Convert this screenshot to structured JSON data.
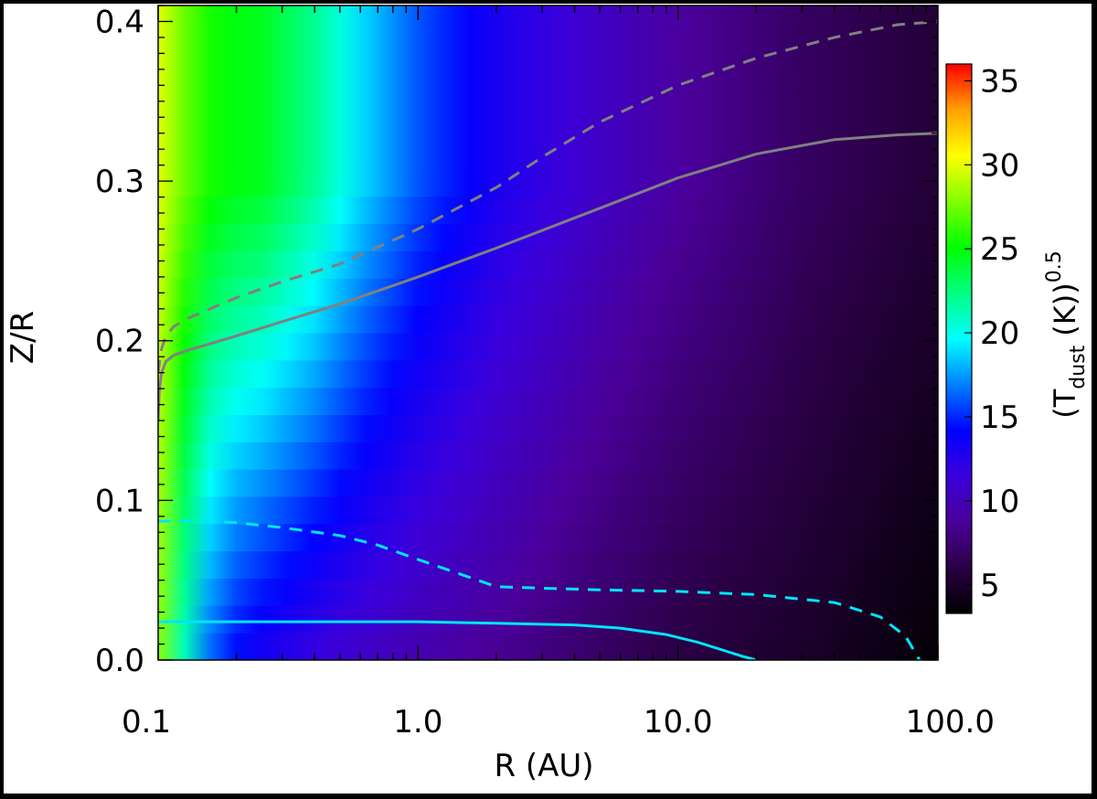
{
  "chart_data": {
    "type": "heatmap",
    "xlabel": "R  (AU)",
    "ylabel": "Z/R",
    "x_scale": "log",
    "xlim": [
      0.1,
      100.0
    ],
    "ylim": [
      0.0,
      0.41
    ],
    "x_ticks": [
      0.1,
      1.0,
      10.0,
      100.0
    ],
    "x_tick_labels": [
      "0.1",
      "1.0",
      "10.0",
      "100.0"
    ],
    "y_ticks": [
      0.0,
      0.1,
      0.2,
      0.3,
      0.4
    ],
    "y_tick_labels": [
      "0.0",
      "0.1",
      "0.2",
      "0.3",
      "0.4"
    ],
    "colorbar": {
      "label_main": "(T",
      "label_sub": "dust",
      "label_unit": "(K))",
      "label_exp": "0.5",
      "range": [
        3.3,
        36.0
      ],
      "ticks": [
        5,
        10,
        15,
        20,
        25,
        30,
        35
      ],
      "tick_labels": [
        "5",
        "10",
        "15",
        "20",
        "25",
        "30",
        "35"
      ],
      "colormap": [
        "#000000",
        "#2a0044",
        "#4a0099",
        "#3a00dd",
        "#0000ff",
        "#0080ff",
        "#00ffff",
        "#00ff80",
        "#00ff00",
        "#80ff00",
        "#ffff00",
        "#ffa000",
        "#ff0000"
      ]
    },
    "heatmap_profile": {
      "x_au": [
        0.1,
        0.13,
        0.17,
        0.25,
        0.4,
        0.6,
        1.0,
        2.0,
        5.0,
        10.0,
        30.0,
        100.0
      ],
      "value_midplane": [
        28,
        20,
        15,
        13,
        11.5,
        10.5,
        9.5,
        8.5,
        7,
        6,
        5,
        3.5
      ],
      "value_surface": [
        30,
        27,
        25,
        24.5,
        22,
        19,
        16,
        13,
        10.5,
        9,
        7,
        5.5
      ]
    },
    "series": [
      {
        "style": "dashed",
        "color": "#808080",
        "x": [
          0.1,
          0.103,
          0.107,
          0.115,
          0.13,
          0.2,
          0.3,
          0.5,
          1.0,
          2.0,
          3.0,
          5.0,
          10.0,
          20.0,
          40.0,
          70.0,
          100.0
        ],
        "y": [
          0.18,
          0.195,
          0.203,
          0.209,
          0.214,
          0.227,
          0.237,
          0.248,
          0.27,
          0.296,
          0.315,
          0.337,
          0.36,
          0.377,
          0.39,
          0.398,
          0.4
        ]
      },
      {
        "style": "solid",
        "color": "#808080",
        "x": [
          0.1,
          0.101,
          0.103,
          0.107,
          0.115,
          0.13,
          0.2,
          0.3,
          0.5,
          1.0,
          2.0,
          5.0,
          10.0,
          20.0,
          40.0,
          70.0,
          100.0
        ],
        "y": [
          0.15,
          0.168,
          0.18,
          0.187,
          0.191,
          0.194,
          0.203,
          0.212,
          0.223,
          0.24,
          0.258,
          0.283,
          0.302,
          0.317,
          0.326,
          0.329,
          0.33
        ]
      },
      {
        "style": "dashed",
        "color": "#00e5ff",
        "x": [
          0.1,
          0.15,
          0.2,
          0.3,
          0.5,
          0.7,
          1.0,
          1.5,
          2.0,
          3.0,
          5.0,
          10.0,
          20.0,
          40.0,
          60.0,
          75.0,
          85.0
        ],
        "y": [
          0.087,
          0.087,
          0.086,
          0.083,
          0.078,
          0.072,
          0.063,
          0.053,
          0.046,
          0.045,
          0.044,
          0.043,
          0.041,
          0.036,
          0.027,
          0.015,
          0.0
        ]
      },
      {
        "style": "solid",
        "color": "#00e5ff",
        "x": [
          0.1,
          0.3,
          0.5,
          1.0,
          2.0,
          4.0,
          6.0,
          9.0,
          12.0,
          15.0,
          18.0,
          20.0
        ],
        "y": [
          0.024,
          0.024,
          0.024,
          0.024,
          0.023,
          0.022,
          0.02,
          0.016,
          0.011,
          0.006,
          0.002,
          0.0
        ]
      }
    ]
  }
}
